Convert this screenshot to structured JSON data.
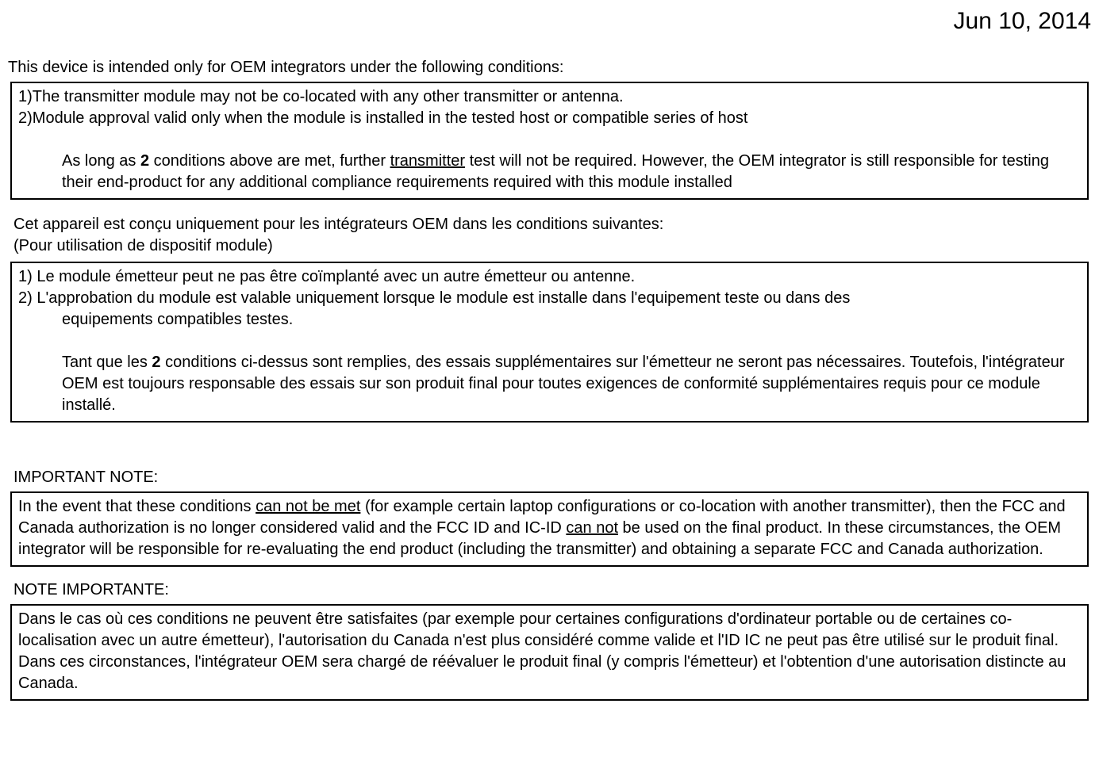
{
  "date": "Jun 10, 2014",
  "intro_en": "This device is intended only for OEM integrators under the following conditions:",
  "box1": {
    "item1": "1)The transmitter module may not be co-located with any other transmitter or antenna.",
    "item2": "2)Module approval valid only when the module is installed in the tested host or compatible series of host",
    "para_pre": "As long as ",
    "para_bold": "2",
    "para_mid": " conditions above are met, further ",
    "para_ul": "transmitter",
    "para_post": " test will not be required. However, the OEM integrator is still responsible for testing their end-product for any additional compliance requirements required with this module installed"
  },
  "intro_fr_line1": "Cet appareil est conçu uniquement pour les intégrateurs OEM dans les conditions suivantes:",
  "intro_fr_line2": "(Pour utilisation de dispositif module)",
  "box2": {
    "item1": "1) Le module émetteur peut ne pas être coïmplanté avec un autre émetteur ou antenne.",
    "item2_l1": "2) L'approbation du module est valable uniquement lorsque le module est installe dans l'equipement teste ou dans des",
    "item2_l2": "equipements compatibles testes.",
    "para_pre": "Tant que les ",
    "para_bold": "2",
    "para_post": " conditions ci-dessus sont remplies, des essais supplémentaires sur l'émetteur ne seront pas nécessaires. Toutefois, l'intégrateur OEM est toujours responsable des essais sur son produit final pour toutes exigences de conformité supplémentaires requis pour ce module installé."
  },
  "heading_en": "IMPORTANT NOTE:",
  "box3": {
    "pre1": " In the event that these conditions ",
    "ul1": "can not be met",
    "mid1": " (for example certain laptop configurations or co-location with another transmitter), then the FCC and Canada authorization is no longer considered valid and the FCC ID and IC-ID ",
    "ul2": "can not",
    "post": " be used on the final product. In these circumstances, the OEM integrator will be responsible for re-evaluating the end product (including the transmitter) and obtaining a separate FCC and Canada authorization."
  },
  "heading_fr": "NOTE IMPORTANTE:",
  "box4": {
    "text": "Dans le cas où ces conditions ne peuvent être satisfaites (par exemple pour certaines configurations d'ordinateur portable ou de certaines co-localisation avec un autre émetteur), l'autorisation du Canada n'est plus considéré comme valide et l'ID IC ne peut pas être utilisé sur le produit final. Dans ces circonstances, l'intégrateur OEM sera chargé de réévaluer le produit final (y compris l'émetteur) et l'obtention d'une autorisation distincte au Canada."
  }
}
